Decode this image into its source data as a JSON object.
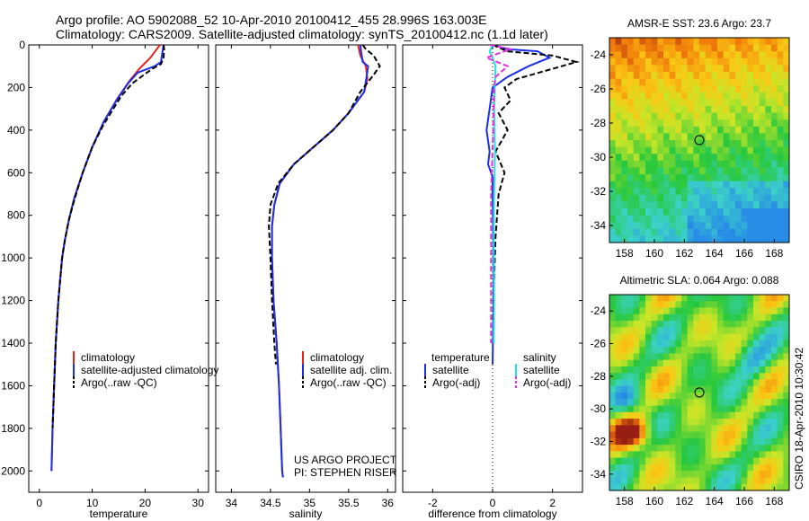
{
  "title_line1": "Argo profile: AO 5902088_52 10-Apr-2010 20100412_455 28.996S 163.003E",
  "title_line2": "Climatology: CARS2009. Satellite-adjusted climatology: synTS_20100412.nc (1.1d later)",
  "project_line1": "US ARGO PROJECT",
  "project_line2": "PI: STEPHEN RISER",
  "stamp": "CSIRO 18-Apr-2010 10:30:42",
  "colors": {
    "climatology": "#e8211c",
    "satellite_adj": "#1a2fe8",
    "argo": "#000000",
    "sat_salinity": "#22e0e8",
    "argo_salinity": "#e830e0"
  },
  "chart_data": [
    {
      "type": "line",
      "name": "temperature-profile",
      "xlabel": "temperature",
      "ylabel": "",
      "xlim": [
        -2,
        32
      ],
      "ylim": [
        2100,
        0
      ],
      "xticks": [
        0,
        10,
        20,
        30
      ],
      "yticks": [
        0,
        200,
        400,
        600,
        800,
        1000,
        1200,
        1400,
        1600,
        1800,
        2000
      ],
      "legend": [
        "climatology",
        "satellite-adjusted climatology",
        "Argo(..raw -QC)"
      ],
      "series": [
        {
          "name": "climatology",
          "color": "#e8211c",
          "dash": "",
          "x": [
            22.8,
            22.2,
            21.0,
            19.0,
            17.0,
            14.8,
            12.2,
            10.0,
            8.2,
            6.6,
            5.6,
            4.8,
            4.3,
            3.6,
            3.1,
            2.8,
            2.5,
            2.3
          ],
          "y": [
            0,
            20,
            60,
            110,
            170,
            250,
            360,
            480,
            600,
            720,
            820,
            920,
            1000,
            1200,
            1400,
            1600,
            1800,
            2000
          ]
        },
        {
          "name": "satellite-adjusted climatology",
          "color": "#1a2fe8",
          "dash": "",
          "x": [
            23.5,
            23.3,
            23.0,
            21.8,
            18.6,
            16.8,
            14.6,
            12.2,
            10.0,
            8.2,
            6.6,
            5.6,
            4.8,
            4.3,
            3.6,
            3.1,
            2.8,
            2.5,
            2.3
          ],
          "y": [
            0,
            30,
            80,
            100,
            130,
            180,
            260,
            360,
            480,
            600,
            720,
            820,
            920,
            1000,
            1200,
            1400,
            1600,
            1800,
            2000
          ]
        },
        {
          "name": "Argo(..raw -QC)",
          "color": "#000000",
          "dash": "6,3",
          "x": [
            23.5,
            23.6,
            23.5,
            23.0,
            21.5,
            19.8,
            17.6,
            15.5,
            14.0,
            12.0,
            10.0,
            8.2,
            6.7,
            5.6,
            4.8,
            4.3,
            3.6,
            3.1,
            2.8,
            2.5
          ],
          "y": [
            0,
            20,
            60,
            90,
            110,
            140,
            180,
            240,
            300,
            380,
            480,
            600,
            720,
            820,
            920,
            1000,
            1200,
            1400,
            1600,
            1800
          ]
        }
      ]
    },
    {
      "type": "line",
      "name": "salinity-profile",
      "xlabel": "salinity",
      "ylabel": "",
      "xlim": [
        33.8,
        36.1
      ],
      "ylim": [
        2100,
        0
      ],
      "xticks": [
        34,
        34.5,
        35,
        35.5,
        36
      ],
      "yticks": [
        0,
        200,
        400,
        600,
        800,
        1000,
        1200,
        1400,
        1600,
        1800,
        2000
      ],
      "legend": [
        "climatology",
        "satellite adj. clim.",
        "Argo(..raw -QC)"
      ],
      "series": [
        {
          "name": "climatology",
          "color": "#e8211c",
          "dash": "",
          "x": [
            35.62,
            35.65,
            35.72,
            35.74,
            35.7,
            35.5,
            35.3,
            35.05,
            34.8,
            34.62,
            34.55,
            34.52,
            34.52,
            34.54,
            34.58,
            34.61,
            34.63,
            34.65,
            34.66
          ],
          "y": [
            0,
            50,
            100,
            160,
            220,
            320,
            400,
            480,
            560,
            650,
            750,
            850,
            1000,
            1200,
            1400,
            1600,
            1800,
            2000,
            2030
          ]
        },
        {
          "name": "satellite adj. clim.",
          "color": "#1a2fe8",
          "dash": "",
          "x": [
            35.65,
            35.66,
            35.68,
            35.75,
            35.7,
            35.5,
            35.3,
            35.05,
            34.8,
            34.62,
            34.55,
            34.52,
            34.52,
            34.54,
            34.58,
            34.61,
            34.63,
            34.65,
            34.66
          ],
          "y": [
            0,
            30,
            80,
            100,
            220,
            320,
            400,
            480,
            560,
            650,
            750,
            850,
            1000,
            1200,
            1400,
            1600,
            1800,
            2000,
            2030
          ]
        },
        {
          "name": "Argo(..raw -QC)",
          "color": "#000000",
          "dash": "6,3",
          "x": [
            35.68,
            35.72,
            35.82,
            35.9,
            35.8,
            35.65,
            35.5,
            35.3,
            35.05,
            34.8,
            34.6,
            34.5,
            34.48,
            34.5,
            34.52,
            34.55,
            34.57
          ],
          "y": [
            0,
            20,
            50,
            100,
            150,
            220,
            320,
            400,
            480,
            560,
            650,
            750,
            850,
            1000,
            1200,
            1400,
            1500
          ]
        }
      ]
    },
    {
      "type": "line",
      "name": "difference-profile",
      "xlabel": "difference from climatology",
      "ylabel": "",
      "xlim": [
        -3,
        3
      ],
      "ylim": [
        2100,
        0
      ],
      "xticks": [
        -2,
        0,
        2
      ],
      "yticks": [
        0,
        200,
        400,
        600,
        800,
        1000,
        1200,
        1400,
        1600,
        1800,
        2000
      ],
      "legend": [
        "temperature",
        "satellite",
        "Argo(-adj)",
        "salinity",
        "satellite",
        "Argo(-adj)"
      ],
      "series": [
        {
          "name": "temperature satellite",
          "color": "#1a2fe8",
          "dash": "",
          "x": [
            0.0,
            0.5,
            1.5,
            1.9,
            1.2,
            0.5,
            0.0,
            -0.1,
            -0.2,
            -0.1,
            -0.15,
            0.0,
            0.0,
            0.02,
            0.03,
            0.02,
            0.0
          ],
          "y": [
            0,
            20,
            30,
            60,
            100,
            150,
            200,
            300,
            400,
            500,
            560,
            620,
            700,
            900,
            1100,
            1300,
            1500
          ]
        },
        {
          "name": "temperature Argo(-adj)",
          "color": "#000000",
          "dash": "6,3",
          "x": [
            0.0,
            0.5,
            2.0,
            2.8,
            1.8,
            0.8,
            0.4,
            0.6,
            0.2,
            0.5,
            0.1,
            0.4,
            0.2,
            0.1,
            0.05,
            0.02
          ],
          "y": [
            0,
            30,
            50,
            80,
            120,
            160,
            200,
            260,
            320,
            400,
            500,
            600,
            700,
            900,
            1100,
            1300
          ]
        },
        {
          "name": "salinity satellite",
          "color": "#22e0e8",
          "dash": "",
          "x": [
            0.0,
            -0.1,
            0.0,
            0.1,
            0.05,
            0.08,
            0.05,
            0.04,
            0.05,
            0.04
          ],
          "y": [
            0,
            30,
            60,
            100,
            300,
            500,
            700,
            900,
            1200,
            1400
          ]
        },
        {
          "name": "salinity Argo(-adj)",
          "color": "#e830e0",
          "dash": "6,3",
          "x": [
            -0.1,
            0.6,
            -0.2,
            0.5,
            0.1,
            0.05,
            0.02,
            -0.05,
            -0.05,
            -0.05
          ],
          "y": [
            0,
            20,
            60,
            100,
            150,
            200,
            400,
            700,
            1000,
            1400
          ]
        }
      ]
    },
    {
      "type": "heatmap",
      "name": "amsre-sst-map",
      "title": "AMSR-E SST: 23.6 Argo: 23.7",
      "xlim": [
        157,
        169
      ],
      "ylim": [
        -35,
        -23
      ],
      "xticks": [
        158,
        160,
        162,
        164,
        166,
        168
      ],
      "yticks": [
        -24,
        -26,
        -28,
        -30,
        -32,
        -34
      ],
      "argo_position": {
        "lon": 163.003,
        "lat": -28.996
      }
    },
    {
      "type": "heatmap",
      "name": "altimetric-sla-map",
      "title": "Altimetric SLA: 0.064 Argo: 0.088",
      "xlim": [
        157,
        169
      ],
      "ylim": [
        -35,
        -23
      ],
      "xticks": [
        158,
        160,
        162,
        164,
        166,
        168
      ],
      "yticks": [
        -24,
        -26,
        -28,
        -30,
        -32,
        -34
      ],
      "argo_position": {
        "lon": 163.003,
        "lat": -28.996
      }
    }
  ]
}
